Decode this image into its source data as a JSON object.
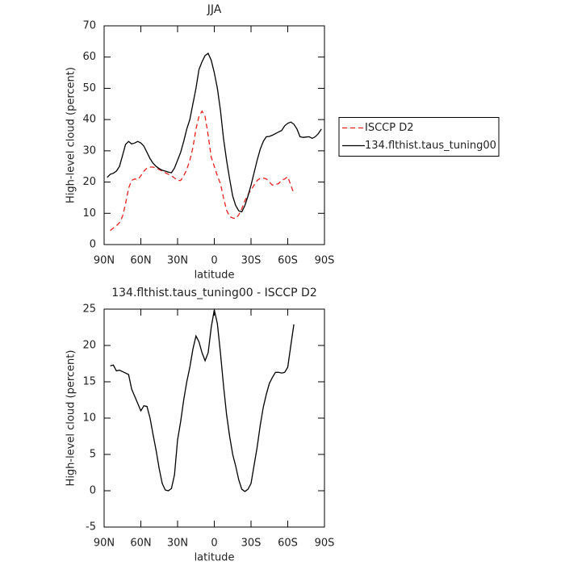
{
  "chart_data": [
    {
      "type": "line",
      "title": "JJA",
      "x_label": "latitude",
      "y_label": "High-level cloud (percent)",
      "x": [
        87.5,
        85,
        82.5,
        80,
        77.5,
        75,
        72.5,
        70,
        67.5,
        65,
        62.5,
        60,
        57.5,
        55,
        52.5,
        50,
        47.5,
        45,
        42.5,
        40,
        37.5,
        35,
        32.5,
        30,
        27.5,
        25,
        22.5,
        20,
        17.5,
        15,
        12.5,
        10,
        7.5,
        5,
        2.5,
        0,
        -2.5,
        -5,
        -7.5,
        -10,
        -12.5,
        -15,
        -17.5,
        -20,
        -22.5,
        -25,
        -27.5,
        -30,
        -32.5,
        -35,
        -37.5,
        -40,
        -42.5,
        -45,
        -47.5,
        -50,
        -52.5,
        -55,
        -57.5,
        -60,
        -62.5,
        -65,
        -67.5,
        -70,
        -72.5,
        -75,
        -77.5,
        -80,
        -82.5,
        -85,
        -87.5
      ],
      "series": [
        {
          "name": "ISCCP D2",
          "color": "#e8201c",
          "line_style": "dashed",
          "values": [
            null,
            4.5,
            5.3,
            6,
            7,
            9,
            13,
            18,
            20.5,
            21,
            20.8,
            22,
            23.5,
            24.5,
            24.8,
            24.8,
            24.5,
            24,
            23.5,
            23,
            22.5,
            22,
            21.3,
            20.5,
            20.5,
            22,
            24,
            27,
            31,
            37,
            41,
            42.7,
            41,
            35,
            28,
            25,
            22,
            19.5,
            15,
            11,
            9,
            8.5,
            8.3,
            9.5,
            11.5,
            14,
            16,
            17.5,
            19,
            20.5,
            21.2,
            21.3,
            21,
            20,
            19,
            19.2,
            19.5,
            20.5,
            21,
            21.7,
            19,
            16.3,
            null,
            null,
            null,
            null,
            null,
            null,
            null,
            null,
            null
          ]
        },
        {
          "name": "134.flthist.taus_tuning00",
          "color": "#000000",
          "line_style": "solid",
          "values": [
            21.5,
            22.5,
            22.8,
            23.5,
            25,
            28.5,
            32,
            33,
            32.2,
            32.5,
            33,
            32.5,
            31.5,
            29.5,
            27.5,
            26,
            25,
            24.3,
            23.8,
            23.5,
            23.2,
            23,
            24.5,
            27,
            29.5,
            33,
            37,
            40,
            45,
            50,
            56,
            58.5,
            60.5,
            61.2,
            59,
            55,
            50,
            43,
            34,
            27,
            21,
            15.5,
            12.5,
            10.8,
            10.5,
            12.5,
            15.5,
            19,
            23,
            27,
            30.5,
            33,
            34.5,
            34.6,
            35,
            35.5,
            36,
            36.5,
            38,
            38.8,
            39.2,
            38.5,
            37,
            34.5,
            34.3,
            34.4,
            34.5,
            34,
            34.5,
            35.5,
            37
          ]
        }
      ],
      "xlim": [
        90,
        -90
      ],
      "xticks": [
        {
          "value": 90,
          "label": "90N"
        },
        {
          "value": 60,
          "label": "60N"
        },
        {
          "value": 30,
          "label": "30N"
        },
        0,
        {
          "value": -30,
          "label": "30S"
        },
        {
          "value": -60,
          "label": "60S"
        },
        {
          "value": -90,
          "label": "90S"
        }
      ],
      "ylim": [
        0,
        70
      ],
      "yticks": [
        0,
        10,
        20,
        30,
        40,
        50,
        60,
        70
      ],
      "legend": "right"
    },
    {
      "type": "line",
      "title": "134.flthist.taus_tuning00 - ISCCP D2",
      "x_label": "latitude",
      "y_label": "High-level cloud (percent)",
      "x": [
        87.5,
        85,
        82.5,
        80,
        77.5,
        75,
        72.5,
        70,
        67.5,
        65,
        62.5,
        60,
        57.5,
        55,
        52.5,
        50,
        47.5,
        45,
        42.5,
        40,
        37.5,
        35,
        32.5,
        30,
        27.5,
        25,
        22.5,
        20,
        17.5,
        15,
        12.5,
        10,
        7.5,
        5,
        2.5,
        0,
        -2.5,
        -5,
        -7.5,
        -10,
        -12.5,
        -15,
        -17.5,
        -20,
        -22.5,
        -25,
        -27.5,
        -30,
        -32.5,
        -35,
        -37.5,
        -40,
        -42.5,
        -45,
        -47.5,
        -50,
        -52.5,
        -55,
        -57.5,
        -60,
        -62.5,
        -65,
        -67.5,
        -70,
        -72.5,
        -75,
        -77.5,
        -80,
        -82.5,
        -85,
        -87.5
      ],
      "series": [
        {
          "color": "#000000",
          "line_style": "solid",
          "values": [
            null,
            17.2,
            17.3,
            16.5,
            16.6,
            16.4,
            16.2,
            16,
            14,
            13,
            12,
            11,
            11.7,
            11.6,
            10,
            7.7,
            5.5,
            3,
            1,
            0.1,
            0,
            0.3,
            2.2,
            7,
            9.5,
            12.5,
            15,
            17,
            19.5,
            21.3,
            20.5,
            19,
            17.9,
            19,
            22.5,
            24.9,
            23,
            19,
            14.5,
            10.5,
            7.5,
            5,
            3.4,
            1.5,
            0.2,
            -0.1,
            0.2,
            1,
            3.5,
            6,
            9,
            11.5,
            13.3,
            14.8,
            15.6,
            16.3,
            16.3,
            16.2,
            16.3,
            17,
            20,
            22.9,
            null,
            null,
            null,
            null,
            null,
            null,
            null,
            null,
            null
          ]
        }
      ],
      "xlim": [
        90,
        -90
      ],
      "xticks": [
        {
          "value": 90,
          "label": "90N"
        },
        {
          "value": 60,
          "label": "60N"
        },
        {
          "value": 30,
          "label": "30N"
        },
        0,
        {
          "value": -30,
          "label": "30S"
        },
        {
          "value": -60,
          "label": "60S"
        },
        {
          "value": -90,
          "label": "90S"
        }
      ],
      "ylim": [
        -5,
        25
      ],
      "yticks": [
        -5,
        0,
        5,
        10,
        15,
        20,
        25
      ]
    }
  ]
}
